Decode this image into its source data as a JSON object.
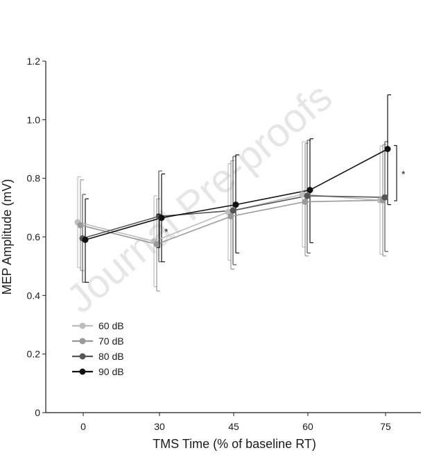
{
  "chart_data": {
    "type": "line",
    "title": "",
    "xlabel": "TMS Time (% of baseline RT)",
    "ylabel": "MEP Amplitude (mV)",
    "categories": [
      "0",
      "30",
      "45",
      "60",
      "75"
    ],
    "ylim": [
      0,
      1.2
    ],
    "yticks": [
      "0",
      "0.2",
      "0.4",
      "0.6",
      "0.8",
      "1.0",
      "1.2"
    ],
    "grid": false,
    "legend_position": "bottom-left",
    "watermark": "Journal Pre-proofs",
    "series": [
      {
        "name": "60 dB",
        "color": "#bdbdbd",
        "values": [
          0.65,
          0.585,
          0.685,
          0.745,
          0.725
        ],
        "err_upper": [
          0.805,
          0.74,
          0.85,
          0.925,
          0.91
        ],
        "err_lower": [
          0.495,
          0.43,
          0.52,
          0.565,
          0.54
        ]
      },
      {
        "name": "70 dB",
        "color": "#999999",
        "values": [
          0.64,
          0.575,
          0.67,
          0.72,
          0.725
        ],
        "err_upper": [
          0.795,
          0.73,
          0.86,
          0.92,
          0.915
        ],
        "err_lower": [
          0.485,
          0.415,
          0.49,
          0.535,
          0.535
        ]
      },
      {
        "name": "80 dB",
        "color": "#555555",
        "values": [
          0.595,
          0.67,
          0.69,
          0.74,
          0.735
        ],
        "err_upper": [
          0.745,
          0.825,
          0.875,
          0.93,
          0.925
        ],
        "err_lower": [
          0.445,
          0.515,
          0.505,
          0.545,
          0.55
        ]
      },
      {
        "name": "90 dB",
        "color": "#111111",
        "values": [
          0.59,
          0.665,
          0.71,
          0.76,
          0.9
        ],
        "err_upper": [
          0.73,
          0.815,
          0.88,
          0.935,
          1.085
        ],
        "err_lower": [
          0.445,
          0.515,
          0.545,
          0.58,
          0.71
        ]
      }
    ],
    "annotations": [
      {
        "text": "*",
        "category": "30"
      },
      {
        "text": "*",
        "category": "75"
      }
    ]
  }
}
